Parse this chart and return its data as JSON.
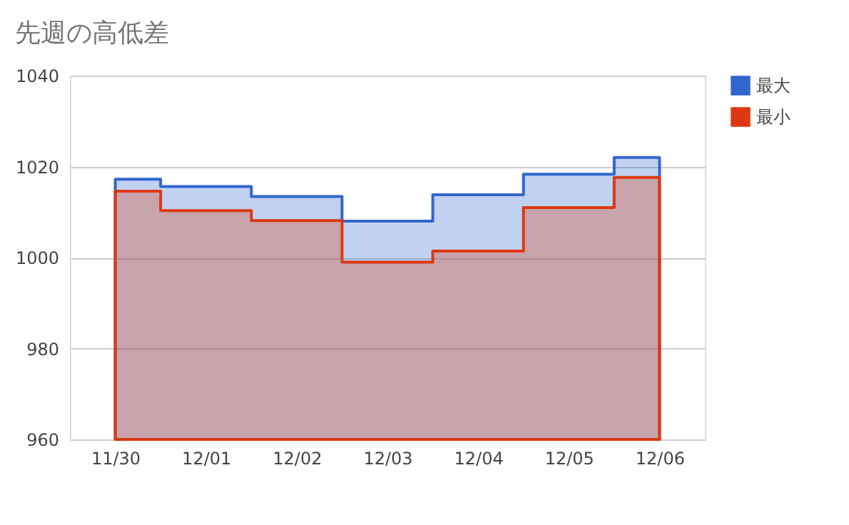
{
  "chart_data": {
    "type": "step",
    "title": "先週の高低差",
    "categories": [
      "11/30",
      "12/01",
      "12/02",
      "12/03",
      "12/04",
      "12/05",
      "12/06"
    ],
    "series": [
      {
        "name": "最大",
        "color": "#3366cc",
        "type": "area",
        "values": [
          1017.2,
          1015.6,
          1013.4,
          1008.0,
          1013.8,
          1018.3,
          1022.0
        ]
      },
      {
        "name": "最小",
        "color": "#dc3912",
        "type": "area",
        "values": [
          1014.6,
          1010.3,
          1008.1,
          999.0,
          1001.4,
          1011.0,
          1017.6
        ]
      }
    ],
    "ylim": [
      960,
      1040
    ],
    "yticks": [
      960,
      980,
      1000,
      1020,
      1040
    ],
    "grid": "y",
    "legend": "top right"
  }
}
